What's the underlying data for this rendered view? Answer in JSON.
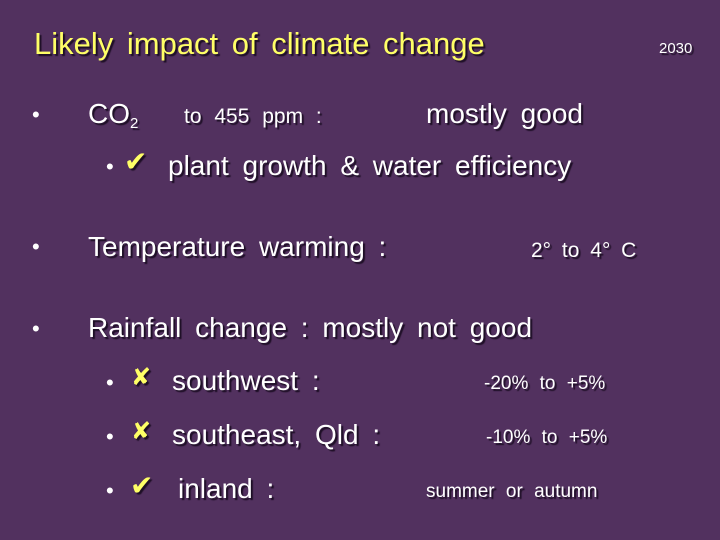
{
  "title": "Likely  impact  of   climate  change",
  "year": "2030",
  "bullet_symbol": "•",
  "co2": {
    "label": "CO",
    "subscript": "2",
    "detail": "to  455  ppm  :",
    "verdict": "mostly  good"
  },
  "plant": {
    "check_icon": "check-icon",
    "check_glyph": "✔",
    "text": "plant  growth  &  water  efficiency"
  },
  "temperature": {
    "label": "Temperature  warming  :",
    "range": "2°  to  4° C"
  },
  "rainfall": {
    "label": "Rainfall  change  :  mostly  not  good",
    "items": [
      {
        "icon": "cross-icon",
        "glyph": "✘",
        "label": "southwest :",
        "value": "-20%  to  +5%"
      },
      {
        "icon": "cross-icon",
        "glyph": "✘",
        "label": "southeast,  Qld :",
        "value": "-10%  to  +5%"
      },
      {
        "icon": "check-icon",
        "glyph": "✔",
        "label": "inland  :",
        "value": "summer  or  autumn"
      }
    ]
  },
  "colors": {
    "background": "#52315f",
    "title": "#ffff66",
    "text": "#ffffff",
    "icon": "#ffff66"
  }
}
